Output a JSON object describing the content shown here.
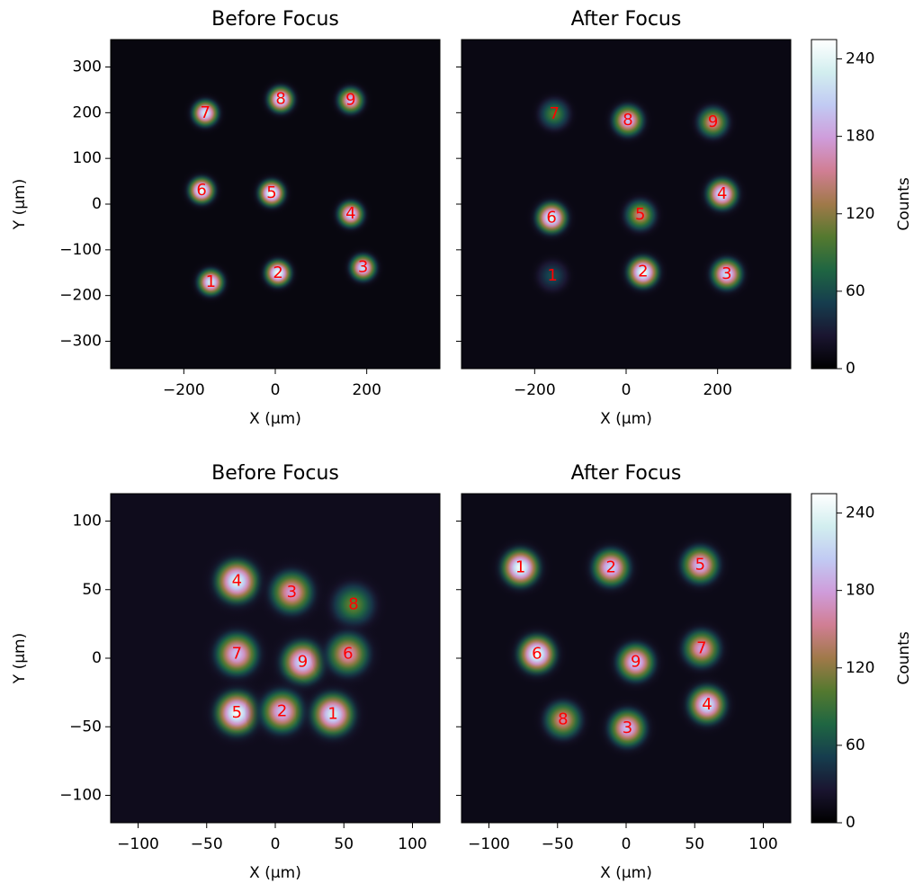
{
  "chart_data": [
    {
      "type": "image",
      "title": "Before Focus",
      "xlabel": "X (μm)",
      "ylabel": "Y (μm)",
      "xlim": [
        -360,
        360
      ],
      "ylim": [
        -360,
        360
      ],
      "xticks": [
        {
          "value": -200,
          "label": "−200"
        },
        0,
        200
      ],
      "yticks": [
        {
          "value": -300,
          "label": "−300"
        },
        {
          "value": -200,
          "label": "−200"
        },
        {
          "value": -100,
          "label": "−100"
        },
        0,
        100,
        200,
        300
      ],
      "show_ytick_labels": true,
      "background": 8,
      "spot_sigma": 17,
      "spots": [
        {
          "label": "7",
          "x": -153,
          "y": 199,
          "peak": 230
        },
        {
          "label": "8",
          "x": 12,
          "y": 229,
          "peak": 240
        },
        {
          "label": "9",
          "x": 165,
          "y": 227,
          "peak": 200
        },
        {
          "label": "6",
          "x": -161,
          "y": 30,
          "peak": 250
        },
        {
          "label": "5",
          "x": -8,
          "y": 24,
          "peak": 255
        },
        {
          "label": "4",
          "x": 165,
          "y": -22,
          "peak": 220
        },
        {
          "label": "1",
          "x": -141,
          "y": -171,
          "peak": 230
        },
        {
          "label": "2",
          "x": 6,
          "y": -151,
          "peak": 250
        },
        {
          "label": "3",
          "x": 192,
          "y": -139,
          "peak": 220
        }
      ]
    },
    {
      "type": "image",
      "title": "After Focus",
      "xlabel": "X (μm)",
      "xlim": [
        -360,
        360
      ],
      "ylim": [
        -360,
        360
      ],
      "xticks": [
        {
          "value": -200,
          "label": "−200"
        },
        0,
        200
      ],
      "yticks": [
        -300,
        -200,
        -100,
        0,
        100,
        200,
        300
      ],
      "show_ytick_labels": false,
      "background": 10,
      "spot_sigma": 20,
      "spots": [
        {
          "label": "7",
          "x": -157,
          "y": 197,
          "peak": 100
        },
        {
          "label": "8",
          "x": 4,
          "y": 183,
          "peak": 200
        },
        {
          "label": "9",
          "x": 190,
          "y": 179,
          "peak": 160
        },
        {
          "label": "6",
          "x": -163,
          "y": -30,
          "peak": 240
        },
        {
          "label": "5",
          "x": 31,
          "y": -24,
          "peak": 150
        },
        {
          "label": "4",
          "x": 210,
          "y": 22,
          "peak": 230
        },
        {
          "label": "1",
          "x": -161,
          "y": -157,
          "peak": 60
        },
        {
          "label": "2",
          "x": 37,
          "y": -149,
          "peak": 250
        },
        {
          "label": "3",
          "x": 220,
          "y": -153,
          "peak": 220
        }
      ],
      "colorbar": true,
      "clim": [
        0,
        255
      ],
      "cticks": [
        0,
        60,
        120,
        180,
        240
      ],
      "clabel": "Counts"
    },
    {
      "type": "image",
      "title": "Before Focus",
      "xlabel": "X (μm)",
      "ylabel": "Y (μm)",
      "xlim": [
        -120,
        120
      ],
      "ylim": [
        -120,
        120
      ],
      "xticks": [
        {
          "value": -100,
          "label": "−100"
        },
        {
          "value": -50,
          "label": "−50"
        },
        0,
        50,
        100
      ],
      "yticks": [
        {
          "value": -100,
          "label": "−100"
        },
        {
          "value": -50,
          "label": "−50"
        },
        0,
        50,
        100
      ],
      "show_ytick_labels": true,
      "background": 15,
      "spot_sigma": 9,
      "spots": [
        {
          "label": "4",
          "x": -28,
          "y": 56,
          "peak": 240
        },
        {
          "label": "3",
          "x": 12,
          "y": 48,
          "peak": 180
        },
        {
          "label": "8",
          "x": 57,
          "y": 39,
          "peak": 110
        },
        {
          "label": "7",
          "x": -28,
          "y": 3,
          "peak": 200
        },
        {
          "label": "9",
          "x": 20,
          "y": -3,
          "peak": 220
        },
        {
          "label": "6",
          "x": 53,
          "y": 3,
          "peak": 170
        },
        {
          "label": "5",
          "x": -28,
          "y": -40,
          "peak": 250
        },
        {
          "label": "2",
          "x": 5,
          "y": -39,
          "peak": 200
        },
        {
          "label": "1",
          "x": 42,
          "y": -41,
          "peak": 230
        }
      ]
    },
    {
      "type": "image",
      "title": "After Focus",
      "xlabel": "X (μm)",
      "xlim": [
        -120,
        120
      ],
      "ylim": [
        -120,
        120
      ],
      "xticks": [
        {
          "value": -100,
          "label": "−100"
        },
        {
          "value": -50,
          "label": "−50"
        },
        0,
        50,
        100
      ],
      "yticks": [
        -100,
        -50,
        0,
        50,
        100
      ],
      "show_ytick_labels": false,
      "background": 12,
      "spot_sigma": 8,
      "spots": [
        {
          "label": "1",
          "x": -77,
          "y": 66,
          "peak": 250
        },
        {
          "label": "2",
          "x": -11,
          "y": 66,
          "peak": 210
        },
        {
          "label": "5",
          "x": 54,
          "y": 68,
          "peak": 200
        },
        {
          "label": "6",
          "x": -65,
          "y": 3,
          "peak": 250
        },
        {
          "label": "9",
          "x": 7,
          "y": -3,
          "peak": 210
        },
        {
          "label": "7",
          "x": 55,
          "y": 7,
          "peak": 180
        },
        {
          "label": "8",
          "x": -46,
          "y": -45,
          "peak": 160
        },
        {
          "label": "3",
          "x": 1,
          "y": -51,
          "peak": 200
        },
        {
          "label": "4",
          "x": 59,
          "y": -34,
          "peak": 230
        }
      ],
      "colorbar": true,
      "clim": [
        0,
        255
      ],
      "cticks": [
        0,
        60,
        120,
        180,
        240
      ],
      "clabel": "Counts"
    }
  ],
  "colormap": [
    "#000000",
    "#1a1530",
    "#163d4e",
    "#1f6642",
    "#54792f",
    "#a07949",
    "#d07e93",
    "#cf9cda",
    "#c1caf3",
    "#d2eeef",
    "#ffffff"
  ]
}
